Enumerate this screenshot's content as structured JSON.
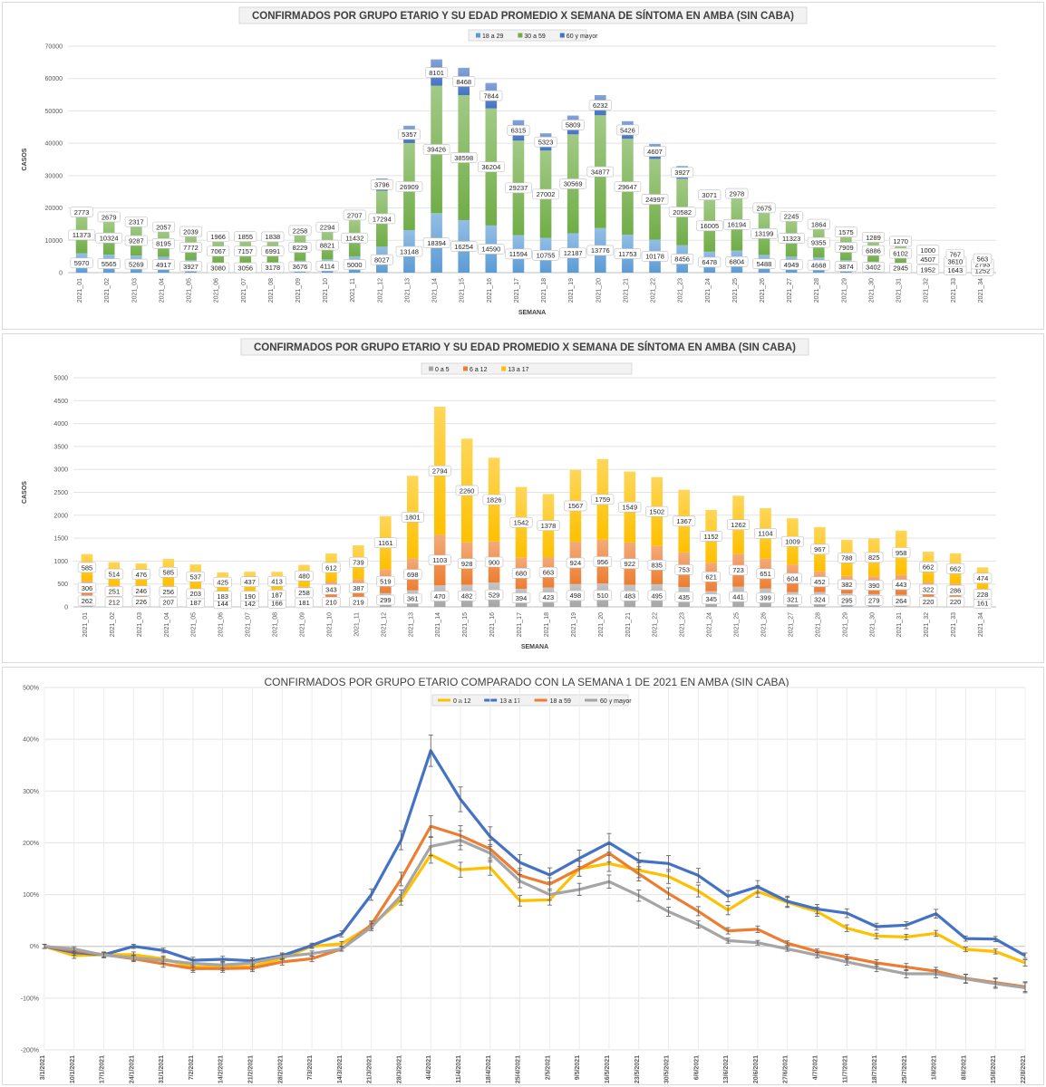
{
  "chart_data": [
    {
      "type": "bar",
      "stacked": true,
      "title": "CONFIRMADOS POR GRUPO ETARIO Y SU EDAD PROMEDIO X SEMANA DE SÍNTOMA EN AMBA (SIN CABA)",
      "xlabel": "SEMANA",
      "ylabel": "CASOS",
      "ylim": [
        0,
        70000
      ],
      "yticks": [
        "0",
        "10000",
        "20000",
        "30000",
        "40000",
        "50000",
        "60000",
        "70000"
      ],
      "grid": true,
      "legend_position": "top",
      "categories": [
        "2021_01",
        "2021_02",
        "2021_03",
        "2021_04",
        "2021_05",
        "2021_06",
        "2021_07",
        "2021_08",
        "2021_09",
        "2021_10",
        "2021_11",
        "2021_12",
        "2021_13",
        "2021_14",
        "2021_15",
        "2021_16",
        "2021_17",
        "2021_18",
        "2021_19",
        "2021_20",
        "2021_21",
        "2021_22",
        "2021_23",
        "2021_24",
        "2021_25",
        "2021_26",
        "2021_27",
        "2021_28",
        "2021_29",
        "2021_30",
        "2021_31",
        "2021_32",
        "2021_33",
        "2021_34"
      ],
      "series": [
        {
          "name": "18 a 29",
          "color": "#5b9bd5",
          "values": [
            5970,
            5565,
            5269,
            4917,
            3927,
            3080,
            3056,
            3178,
            3676,
            4114,
            5000,
            8027,
            13148,
            18394,
            16254,
            14590,
            11594,
            10755,
            12187,
            13776,
            11753,
            10178,
            8456,
            6478,
            6804,
            5488,
            4949,
            4668,
            3874,
            3402,
            2945,
            1952,
            1643,
            1252
          ]
        },
        {
          "name": "30 a 59",
          "color": "#70ad47",
          "values": [
            11373,
            10324,
            9287,
            8195,
            7772,
            7067,
            7157,
            6991,
            8229,
            8821,
            11432,
            17294,
            26909,
            39426,
            38598,
            36204,
            29237,
            27002,
            30569,
            34877,
            29647,
            24997,
            20582,
            16005,
            16194,
            13199,
            11323,
            9355,
            7909,
            6886,
            6102,
            4507,
            3610,
            2793
          ]
        },
        {
          "name": "60 y mayor",
          "color": "#4472c4",
          "values": [
            2773,
            2679,
            2317,
            2057,
            2039,
            1966,
            1855,
            1838,
            2258,
            2294,
            2707,
            3796,
            5357,
            8101,
            8468,
            7844,
            6315,
            5323,
            5809,
            6232,
            5426,
            4607,
            3927,
            3071,
            2978,
            2675,
            2245,
            1864,
            1575,
            1289,
            1270,
            1000,
            767,
            563
          ]
        }
      ]
    },
    {
      "type": "bar",
      "stacked": true,
      "title": "CONFIRMADOS POR GRUPO ETARIO Y SU EDAD PROMEDIO X SEMANA DE SÍNTOMA EN AMBA (SIN CABA)",
      "xlabel": "SEMANA",
      "ylabel": "CASOS",
      "ylim": [
        0,
        5000
      ],
      "yticks": [
        "0",
        "500",
        "1000",
        "1500",
        "2000",
        "2500",
        "3000",
        "3500",
        "4000",
        "4500",
        "5000"
      ],
      "grid": true,
      "legend_position": "top",
      "categories": [
        "2021_01",
        "2021_02",
        "2021_03",
        "2021_04",
        "2021_05",
        "2021_06",
        "2021_07",
        "2021_08",
        "2021_09",
        "2021_10",
        "2021_11",
        "2021_12",
        "2021_13",
        "2021_14",
        "2021_15",
        "2021_16",
        "2021_17",
        "2021_18",
        "2021_19",
        "2021_20",
        "2021_21",
        "2021_22",
        "2021_23",
        "2021_24",
        "2021_25",
        "2021_26",
        "2021_27",
        "2021_28",
        "2021_29",
        "2021_30",
        "2021_31",
        "2021_32",
        "2021_33",
        "2021_34"
      ],
      "series": [
        {
          "name": "0 a 5",
          "color": "#a5a5a5",
          "values": [
            262,
            212,
            226,
            207,
            187,
            144,
            142,
            166,
            181,
            210,
            219,
            299,
            361,
            470,
            482,
            529,
            394,
            423,
            498,
            510,
            483,
            495,
            435,
            345,
            441,
            399,
            321,
            324,
            295,
            279,
            264,
            220,
            220,
            161
          ]
        },
        {
          "name": "6 a 12",
          "color": "#ed7d31",
          "values": [
            306,
            251,
            246,
            256,
            203,
            183,
            190,
            187,
            258,
            343,
            387,
            519,
            698,
            1103,
            928,
            900,
            680,
            663,
            924,
            956,
            922,
            835,
            753,
            621,
            723,
            651,
            604,
            452,
            382,
            390,
            443,
            322,
            286,
            228
          ]
        },
        {
          "name": "13 a 17",
          "color": "#ffc000",
          "values": [
            585,
            514,
            476,
            585,
            537,
            425,
            437,
            413,
            480,
            612,
            739,
            1161,
            1801,
            2794,
            2260,
            1826,
            1542,
            1378,
            1567,
            1759,
            1549,
            1502,
            1367,
            1152,
            1262,
            1104,
            1009,
            967,
            788,
            825,
            958,
            662,
            662,
            474
          ]
        }
      ]
    },
    {
      "type": "line",
      "title": "CONFIRMADOS POR GRUPO ETARIO COMPARADO CON LA SEMANA 1 DE 2021 EN AMBA (SIN CABA)",
      "xlabel": "",
      "ylabel": "",
      "ylim": [
        -200,
        500
      ],
      "yticks": [
        "-200%",
        "-100%",
        "0%",
        "100%",
        "200%",
        "300%",
        "400%",
        "500%"
      ],
      "grid": true,
      "legend_position": "top",
      "x": [
        "3/1/2021",
        "10/1/2021",
        "17/1/2021",
        "24/1/2021",
        "31/1/2021",
        "7/2/2021",
        "14/2/2021",
        "21/2/2021",
        "28/2/2021",
        "7/3/2021",
        "14/3/2021",
        "21/3/2021",
        "28/3/2021",
        "4/4/2021",
        "11/4/2021",
        "18/4/2021",
        "25/4/2021",
        "2/5/2021",
        "9/5/2021",
        "16/5/2021",
        "23/5/2021",
        "30/5/2021",
        "6/6/2021",
        "13/6/2021",
        "20/6/2021",
        "27/6/2021",
        "4/7/2021",
        "11/7/2021",
        "18/7/2021",
        "25/7/2021",
        "1/8/2021",
        "8/8/2021",
        "15/8/2021",
        "22/8/2021"
      ],
      "series": [
        {
          "name": "0 a 12",
          "color": "#ffc000",
          "values": [
            0,
            -18,
            -16,
            -16,
            -24,
            -40,
            -40,
            -39,
            -23,
            0,
            5,
            40,
            90,
            177,
            148,
            152,
            88,
            90,
            150,
            160,
            147,
            135,
            107,
            70,
            106,
            85,
            67,
            35,
            20,
            18,
            25,
            -6,
            -10,
            -32
          ]
        },
        {
          "name": "13 a 17",
          "color": "#4472c4",
          "values": [
            0,
            -12,
            -16,
            0,
            -8,
            -27,
            -25,
            -28,
            -18,
            2,
            24,
            100,
            205,
            378,
            284,
            212,
            162,
            138,
            170,
            200,
            165,
            160,
            137,
            97,
            115,
            87,
            72,
            64,
            38,
            41,
            63,
            15,
            14,
            -18
          ]
        },
        {
          "name": "18 a 59",
          "color": "#ed7d31",
          "values": [
            0,
            -8,
            -16,
            -24,
            -34,
            -43,
            -43,
            -42,
            -30,
            -24,
            -5,
            42,
            130,
            232,
            214,
            188,
            137,
            120,
            150,
            180,
            140,
            102,
            68,
            30,
            33,
            6,
            -10,
            -21,
            -32,
            -40,
            -48,
            -62,
            -70,
            -78
          ]
        },
        {
          "name": "60 y mayor",
          "color": "#a5a5a5",
          "values": [
            0,
            -5,
            -17,
            -22,
            -27,
            -33,
            -36,
            -32,
            -20,
            -14,
            -5,
            37,
            98,
            193,
            205,
            180,
            126,
            100,
            110,
            125,
            98,
            67,
            42,
            11,
            7,
            -5,
            -17,
            -30,
            -42,
            -53,
            -53,
            -63,
            -72,
            -80
          ]
        }
      ]
    }
  ]
}
